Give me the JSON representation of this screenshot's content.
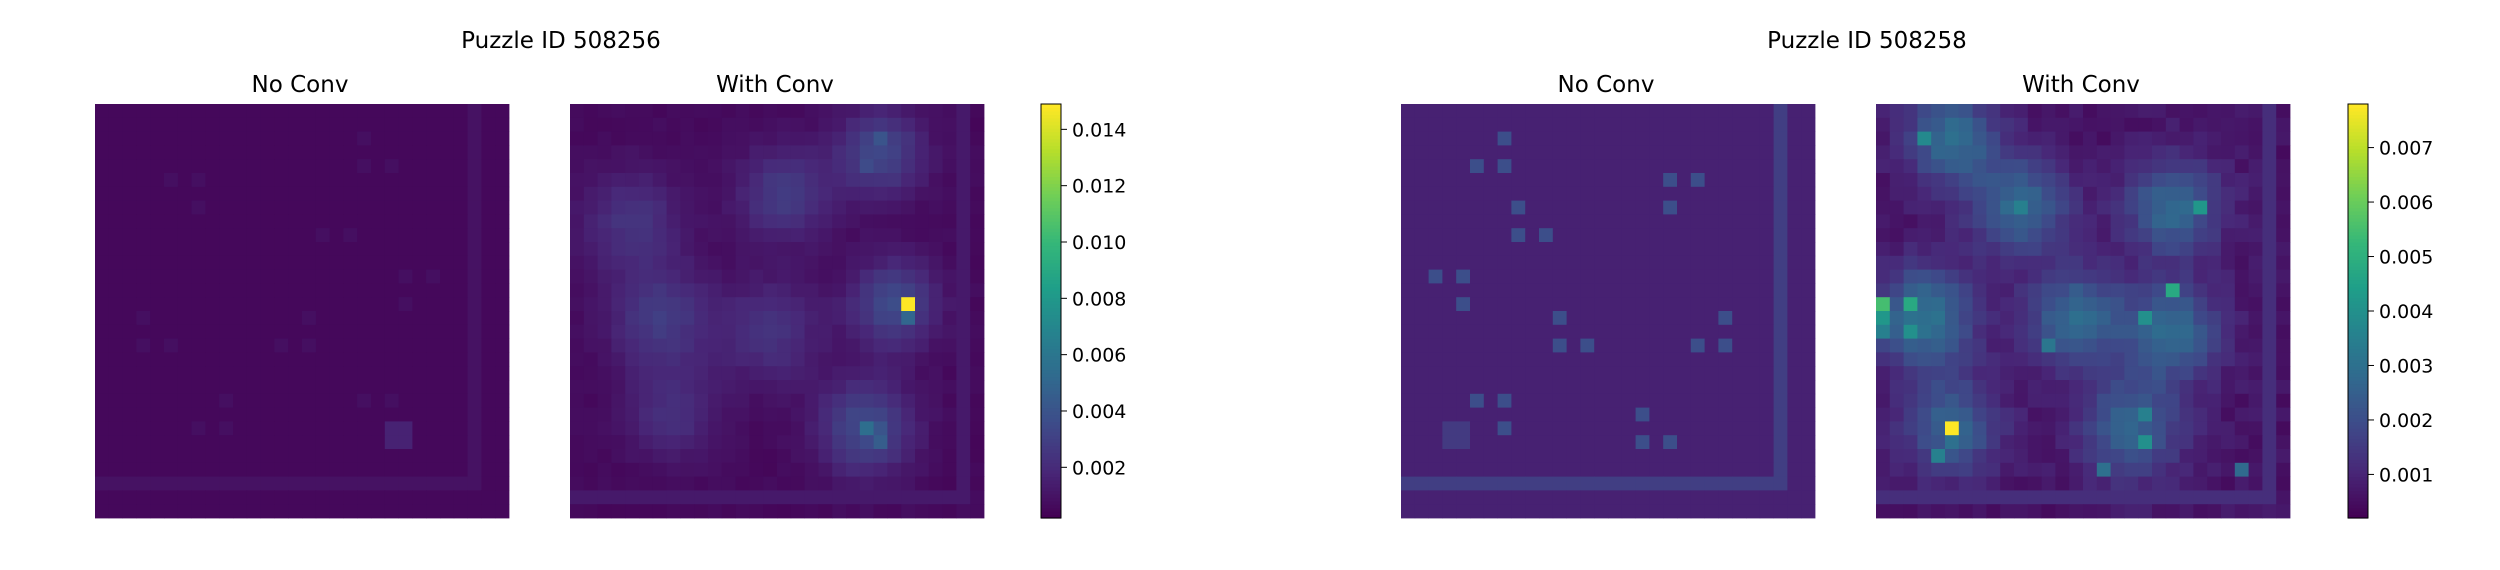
{
  "colormap": "viridis",
  "chart_data": [
    {
      "type": "heatmap",
      "title": "Puzzle ID 508256",
      "grid_size": [
        30,
        30
      ],
      "colorbar": {
        "vmin": 0.0002,
        "vmax": 0.0149,
        "ticks": [
          "0.002",
          "0.004",
          "0.006",
          "0.008",
          "0.010",
          "0.012",
          "0.014"
        ],
        "tick_values": [
          0.002,
          0.004,
          0.006,
          0.008,
          0.01,
          0.012,
          0.014
        ]
      },
      "panels": [
        {
          "title": "No Conv",
          "base": 0.0005,
          "cells": [
            {
              "r": 2,
              "c": 19,
              "v": 0.0008
            },
            {
              "r": 4,
              "c": 19,
              "v": 0.0008
            },
            {
              "r": 4,
              "c": 21,
              "v": 0.0008
            },
            {
              "r": 5,
              "c": 5,
              "v": 0.0008
            },
            {
              "r": 5,
              "c": 7,
              "v": 0.0008
            },
            {
              "r": 7,
              "c": 7,
              "v": 0.0008
            },
            {
              "r": 9,
              "c": 16,
              "v": 0.0008
            },
            {
              "r": 9,
              "c": 18,
              "v": 0.0008
            },
            {
              "r": 12,
              "c": 22,
              "v": 0.0008
            },
            {
              "r": 12,
              "c": 24,
              "v": 0.0008
            },
            {
              "r": 14,
              "c": 22,
              "v": 0.0008
            },
            {
              "r": 15,
              "c": 3,
              "v": 0.0008
            },
            {
              "r": 15,
              "c": 15,
              "v": 0.0008
            },
            {
              "r": 17,
              "c": 3,
              "v": 0.0008
            },
            {
              "r": 17,
              "c": 5,
              "v": 0.0008
            },
            {
              "r": 17,
              "c": 13,
              "v": 0.0008
            },
            {
              "r": 17,
              "c": 15,
              "v": 0.0008
            },
            {
              "r": 21,
              "c": 9,
              "v": 0.0008
            },
            {
              "r": 21,
              "c": 19,
              "v": 0.0008
            },
            {
              "r": 21,
              "c": 21,
              "v": 0.0008
            },
            {
              "r": 23,
              "c": 7,
              "v": 0.0008
            },
            {
              "r": 23,
              "c": 9,
              "v": 0.0008
            },
            {
              "r": 23,
              "c": 21,
              "v": 0.0016
            },
            {
              "r": 23,
              "c": 22,
              "v": 0.0016
            },
            {
              "r": 24,
              "c": 21,
              "v": 0.0016
            },
            {
              "r": 24,
              "c": 22,
              "v": 0.0016
            }
          ],
          "frame": {
            "row": 27,
            "col": 27,
            "v": 0.0009
          }
        },
        {
          "title": "With Conv",
          "base": 0.0004,
          "noise": 0.0003,
          "blobs": [
            {
              "r": 3,
              "c": 22,
              "s": 2.2,
              "v": 0.0028
            },
            {
              "r": 8,
              "c": 4,
              "s": 2.6,
              "v": 0.0018
            },
            {
              "r": 6,
              "c": 15,
              "s": 2.4,
              "v": 0.0022
            },
            {
              "r": 15,
              "c": 6,
              "s": 2.6,
              "v": 0.0022
            },
            {
              "r": 16,
              "c": 14,
              "s": 2.6,
              "v": 0.0018
            },
            {
              "r": 14,
              "c": 23,
              "s": 2.2,
              "v": 0.003
            },
            {
              "r": 22,
              "c": 7,
              "s": 2.4,
              "v": 0.0016
            },
            {
              "r": 23,
              "c": 21,
              "s": 2.4,
              "v": 0.003
            }
          ],
          "cells": [
            {
              "r": 14,
              "c": 24,
              "v": 0.0149
            },
            {
              "r": 15,
              "c": 24,
              "v": 0.005
            },
            {
              "r": 23,
              "c": 21,
              "v": 0.0055
            },
            {
              "r": 23,
              "c": 22,
              "v": 0.004
            },
            {
              "r": 24,
              "c": 22,
              "v": 0.0045
            },
            {
              "r": 2,
              "c": 22,
              "v": 0.004
            },
            {
              "r": 4,
              "c": 21,
              "v": 0.0035
            }
          ],
          "frame": {
            "row": 28,
            "col": 28,
            "v": 0.0012
          }
        }
      ]
    },
    {
      "type": "heatmap",
      "title": "Puzzle ID 508258",
      "grid_size": [
        30,
        30
      ],
      "colorbar": {
        "vmin": 0.0002,
        "vmax": 0.0078,
        "ticks": [
          "0.001",
          "0.002",
          "0.003",
          "0.004",
          "0.005",
          "0.006",
          "0.007"
        ],
        "tick_values": [
          0.001,
          0.002,
          0.003,
          0.004,
          0.005,
          0.006,
          0.007
        ]
      },
      "panels": [
        {
          "title": "No Conv",
          "base": 0.0009,
          "cells": [
            {
              "r": 2,
              "c": 7,
              "v": 0.002
            },
            {
              "r": 4,
              "c": 5,
              "v": 0.002
            },
            {
              "r": 4,
              "c": 7,
              "v": 0.002
            },
            {
              "r": 5,
              "c": 19,
              "v": 0.002
            },
            {
              "r": 5,
              "c": 21,
              "v": 0.002
            },
            {
              "r": 7,
              "c": 8,
              "v": 0.002
            },
            {
              "r": 7,
              "c": 19,
              "v": 0.002
            },
            {
              "r": 9,
              "c": 8,
              "v": 0.002
            },
            {
              "r": 9,
              "c": 10,
              "v": 0.002
            },
            {
              "r": 12,
              "c": 2,
              "v": 0.002
            },
            {
              "r": 12,
              "c": 4,
              "v": 0.002
            },
            {
              "r": 14,
              "c": 4,
              "v": 0.002
            },
            {
              "r": 15,
              "c": 11,
              "v": 0.002
            },
            {
              "r": 15,
              "c": 23,
              "v": 0.002
            },
            {
              "r": 17,
              "c": 11,
              "v": 0.002
            },
            {
              "r": 17,
              "c": 13,
              "v": 0.002
            },
            {
              "r": 17,
              "c": 21,
              "v": 0.002
            },
            {
              "r": 17,
              "c": 23,
              "v": 0.002
            },
            {
              "r": 21,
              "c": 5,
              "v": 0.002
            },
            {
              "r": 21,
              "c": 7,
              "v": 0.002
            },
            {
              "r": 22,
              "c": 17,
              "v": 0.002
            },
            {
              "r": 23,
              "c": 7,
              "v": 0.002
            },
            {
              "r": 24,
              "c": 17,
              "v": 0.002
            },
            {
              "r": 24,
              "c": 19,
              "v": 0.002
            },
            {
              "r": 23,
              "c": 3,
              "v": 0.0015
            },
            {
              "r": 23,
              "c": 4,
              "v": 0.0015
            },
            {
              "r": 24,
              "c": 3,
              "v": 0.0015
            },
            {
              "r": 24,
              "c": 4,
              "v": 0.0015
            }
          ],
          "frame": {
            "row": 27,
            "col": 27,
            "v": 0.0016
          }
        },
        {
          "title": "With Conv",
          "base": 0.0004,
          "noise": 0.0004,
          "blobs": [
            {
              "r": 2,
              "c": 5,
              "s": 2.4,
              "v": 0.0022
            },
            {
              "r": 7,
              "c": 10,
              "s": 2.4,
              "v": 0.0022
            },
            {
              "r": 7,
              "c": 21,
              "s": 2.4,
              "v": 0.0022
            },
            {
              "r": 15,
              "c": 3,
              "s": 2.6,
              "v": 0.0025
            },
            {
              "r": 15,
              "c": 14,
              "s": 2.4,
              "v": 0.0022
            },
            {
              "r": 16,
              "c": 21,
              "s": 2.4,
              "v": 0.0022
            },
            {
              "r": 23,
              "c": 5,
              "s": 2.4,
              "v": 0.002
            },
            {
              "r": 23,
              "c": 18,
              "s": 2.6,
              "v": 0.002
            }
          ],
          "cells": [
            {
              "r": 14,
              "c": 0,
              "v": 0.0055
            },
            {
              "r": 14,
              "c": 2,
              "v": 0.0048
            },
            {
              "r": 15,
              "c": 0,
              "v": 0.0042
            },
            {
              "r": 16,
              "c": 0,
              "v": 0.0035
            },
            {
              "r": 16,
              "c": 2,
              "v": 0.004
            },
            {
              "r": 23,
              "c": 5,
              "v": 0.0078
            },
            {
              "r": 25,
              "c": 4,
              "v": 0.0035
            },
            {
              "r": 24,
              "c": 5,
              "v": 0.003
            },
            {
              "r": 2,
              "c": 3,
              "v": 0.0038
            },
            {
              "r": 7,
              "c": 10,
              "v": 0.0035
            },
            {
              "r": 7,
              "c": 23,
              "v": 0.0042
            },
            {
              "r": 13,
              "c": 21,
              "v": 0.0048
            },
            {
              "r": 15,
              "c": 19,
              "v": 0.004
            },
            {
              "r": 22,
              "c": 19,
              "v": 0.0035
            },
            {
              "r": 24,
              "c": 19,
              "v": 0.004
            },
            {
              "r": 26,
              "c": 16,
              "v": 0.003
            },
            {
              "r": 26,
              "c": 26,
              "v": 0.0028
            },
            {
              "r": 17,
              "c": 12,
              "v": 0.0032
            }
          ],
          "frame": {
            "row": 28,
            "col": 28,
            "v": 0.0012
          }
        }
      ]
    }
  ]
}
